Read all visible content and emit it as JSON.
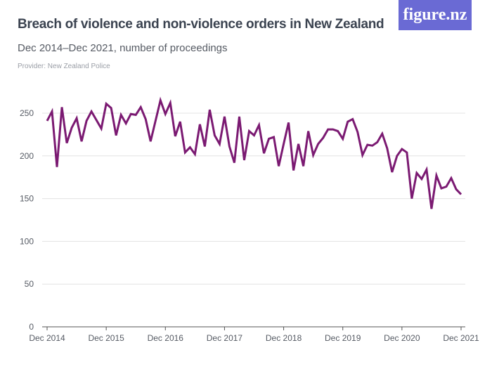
{
  "header": {
    "title": "Breach of violence and non-violence orders in New Zealand",
    "subtitle": "Dec 2014–Dec 2021, number of proceedings",
    "provider": "Provider: New Zealand Police",
    "logo": "figure.nz"
  },
  "colors": {
    "line": "#7b1a72",
    "grid": "#e3e3e3",
    "logo_bg": "#6a6ad4"
  },
  "chart_data": {
    "type": "line",
    "title": "Breach of violence and non-violence orders in New Zealand",
    "subtitle": "Dec 2014–Dec 2021, number of proceedings",
    "ylim": [
      0,
      270
    ],
    "yticks": [
      0,
      50,
      100,
      150,
      200,
      250
    ],
    "xticks": [
      "Dec 2014",
      "Dec 2015",
      "Dec 2016",
      "Dec 2017",
      "Dec 2018",
      "Dec 2019",
      "Dec 2020",
      "Dec 2021"
    ],
    "x_start": "Dec 2014",
    "x_end": "Dec 2021",
    "frequency": "monthly",
    "grid": true,
    "values": [
      241,
      252,
      187,
      257,
      215,
      233,
      244,
      217,
      241,
      252,
      242,
      232,
      261,
      256,
      224,
      248,
      238,
      249,
      248,
      257,
      243,
      217,
      241,
      265,
      249,
      262,
      223,
      240,
      204,
      210,
      202,
      237,
      211,
      254,
      224,
      214,
      246,
      211,
      192,
      246,
      195,
      229,
      224,
      236,
      203,
      220,
      222,
      188,
      214,
      239,
      183,
      214,
      188,
      229,
      201,
      214,
      221,
      231,
      231,
      229,
      220,
      240,
      243,
      228,
      201,
      213,
      212,
      216,
      226,
      209,
      181,
      200,
      208,
      204,
      150,
      180,
      173,
      184,
      138,
      177,
      162,
      164,
      174,
      161,
      155
    ]
  }
}
